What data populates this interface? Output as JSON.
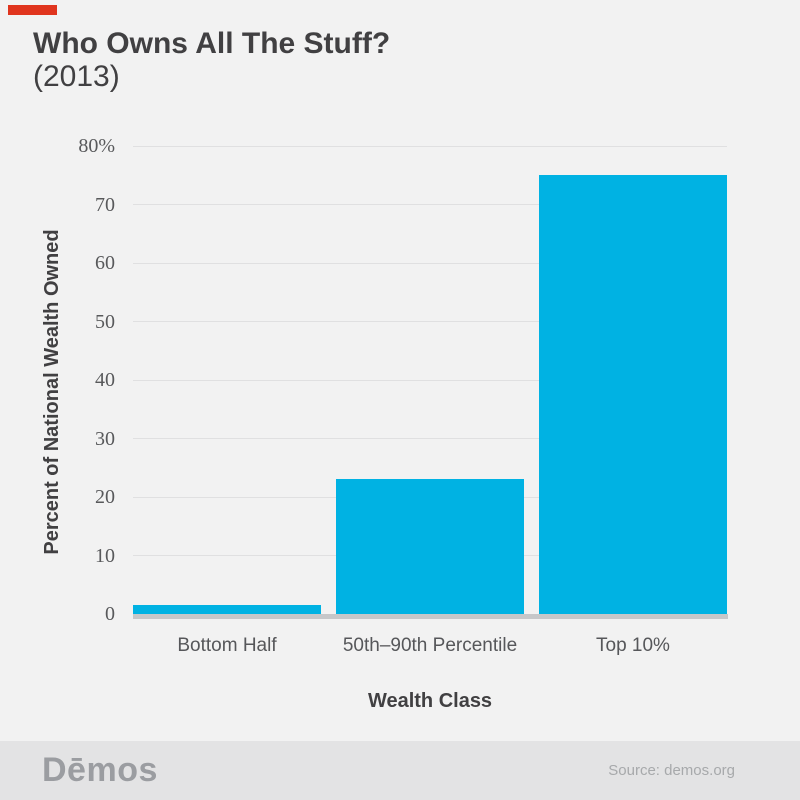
{
  "header": {
    "title": "Who Owns All The Stuff?",
    "subtitle": "(2013)"
  },
  "chart_data": {
    "type": "bar",
    "title": "Who Owns All The Stuff?",
    "subtitle": "(2013)",
    "categories": [
      "Bottom Half",
      "50th–90th Percentile",
      "Top 10%"
    ],
    "values": [
      1.5,
      23,
      75
    ],
    "xlabel": "Wealth Class",
    "ylabel": "Percent of National Wealth Owned",
    "ylim": [
      0,
      80
    ],
    "ytick_interval": 10,
    "ytick_labels": [
      "0",
      "10",
      "20",
      "30",
      "40",
      "50",
      "60",
      "70",
      "80%"
    ],
    "grid": true,
    "legend": "none",
    "bar_color": "#00b2e3"
  },
  "footer": {
    "logo_text": "Dēmos",
    "source": "Source: demos.org"
  },
  "colors": {
    "bg": "#f2f2f2",
    "bar": "#00b2e3",
    "title": "#414042",
    "tick": "#58595b",
    "cat": "#56575a",
    "grid": "#e0e0e1",
    "axis": "#c6c7c9",
    "footer-bg": "#e3e3e4",
    "logo": "#9b9da1",
    "source": "#a7a9ab",
    "accent": "#e0351e"
  }
}
